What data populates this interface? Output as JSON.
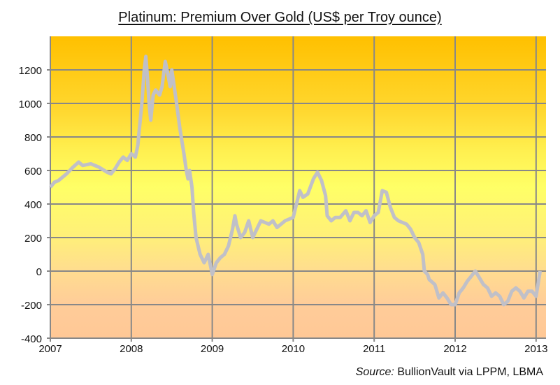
{
  "chart_data": {
    "type": "line",
    "title": "Platinum: Premium Over Gold (US$ per Troy ounce)",
    "xlabel": "",
    "ylabel": "",
    "source_label": "Source:",
    "source_text": "BullionVault via LPPM, LBMA",
    "xlim": [
      2007,
      2013.1
    ],
    "ylim": [
      -400,
      1400
    ],
    "grid": true,
    "x_ticks": [
      "2007",
      "2008",
      "2009",
      "2010",
      "2011",
      "2012",
      "2013"
    ],
    "y_ticks": [
      "-400",
      "-200",
      "0",
      "200",
      "400",
      "600",
      "800",
      "1000",
      "1200"
    ],
    "series": [
      {
        "name": "Platinum premium over gold",
        "color": "#C0C0C8",
        "x": [
          2007.0,
          2007.05,
          2007.1,
          2007.15,
          2007.2,
          2007.28,
          2007.35,
          2007.4,
          2007.5,
          2007.6,
          2007.7,
          2007.75,
          2007.8,
          2007.85,
          2007.9,
          2007.95,
          2008.0,
          2008.05,
          2008.08,
          2008.1,
          2008.13,
          2008.16,
          2008.18,
          2008.2,
          2008.22,
          2008.24,
          2008.27,
          2008.3,
          2008.35,
          2008.38,
          2008.42,
          2008.45,
          2008.48,
          2008.5,
          2008.53,
          2008.56,
          2008.6,
          2008.65,
          2008.68,
          2008.7,
          2008.72,
          2008.75,
          2008.77,
          2008.8,
          2008.85,
          2008.9,
          2008.95,
          2009.0,
          2009.05,
          2009.1,
          2009.15,
          2009.2,
          2009.25,
          2009.28,
          2009.3,
          2009.35,
          2009.4,
          2009.45,
          2009.5,
          2009.55,
          2009.6,
          2009.7,
          2009.75,
          2009.8,
          2009.9,
          2010.0,
          2010.05,
          2010.08,
          2010.12,
          2010.18,
          2010.25,
          2010.3,
          2010.35,
          2010.4,
          2010.42,
          2010.47,
          2010.52,
          2010.58,
          2010.65,
          2010.7,
          2010.75,
          2010.8,
          2010.85,
          2010.9,
          2010.95,
          2011.0,
          2011.05,
          2011.1,
          2011.15,
          2011.2,
          2011.25,
          2011.3,
          2011.4,
          2011.45,
          2011.5,
          2011.55,
          2011.6,
          2011.62,
          2011.66,
          2011.68,
          2011.75,
          2011.8,
          2011.85,
          2011.9,
          2011.95,
          2012.0,
          2012.05,
          2012.1,
          2012.15,
          2012.2,
          2012.25,
          2012.3,
          2012.35,
          2012.4,
          2012.45,
          2012.5,
          2012.55,
          2012.6,
          2012.65,
          2012.7,
          2012.75,
          2012.8,
          2012.85,
          2012.9,
          2012.95,
          2013.0,
          2013.05
        ],
        "y": [
          500,
          530,
          540,
          560,
          580,
          620,
          650,
          630,
          640,
          620,
          590,
          580,
          610,
          650,
          680,
          660,
          700,
          680,
          750,
          850,
          1000,
          1200,
          1280,
          1150,
          1000,
          900,
          1050,
          1080,
          1050,
          1100,
          1250,
          1180,
          1100,
          1200,
          1100,
          1000,
          850,
          700,
          600,
          550,
          600,
          500,
          350,
          200,
          100,
          50,
          100,
          -20,
          50,
          80,
          100,
          150,
          250,
          330,
          280,
          200,
          230,
          300,
          200,
          250,
          300,
          280,
          300,
          260,
          300,
          320,
          420,
          480,
          440,
          460,
          550,
          590,
          540,
          450,
          330,
          300,
          320,
          320,
          360,
          300,
          350,
          350,
          330,
          360,
          290,
          330,
          350,
          480,
          470,
          380,
          320,
          300,
          280,
          250,
          200,
          170,
          100,
          0,
          -20,
          -50,
          -80,
          -160,
          -130,
          -160,
          -200,
          -200,
          -130,
          -100,
          -60,
          -30,
          0,
          -40,
          -80,
          -100,
          -150,
          -130,
          -150,
          -200,
          -180,
          -120,
          -100,
          -120,
          -160,
          -120,
          -120,
          -150,
          0
        ]
      }
    ]
  }
}
